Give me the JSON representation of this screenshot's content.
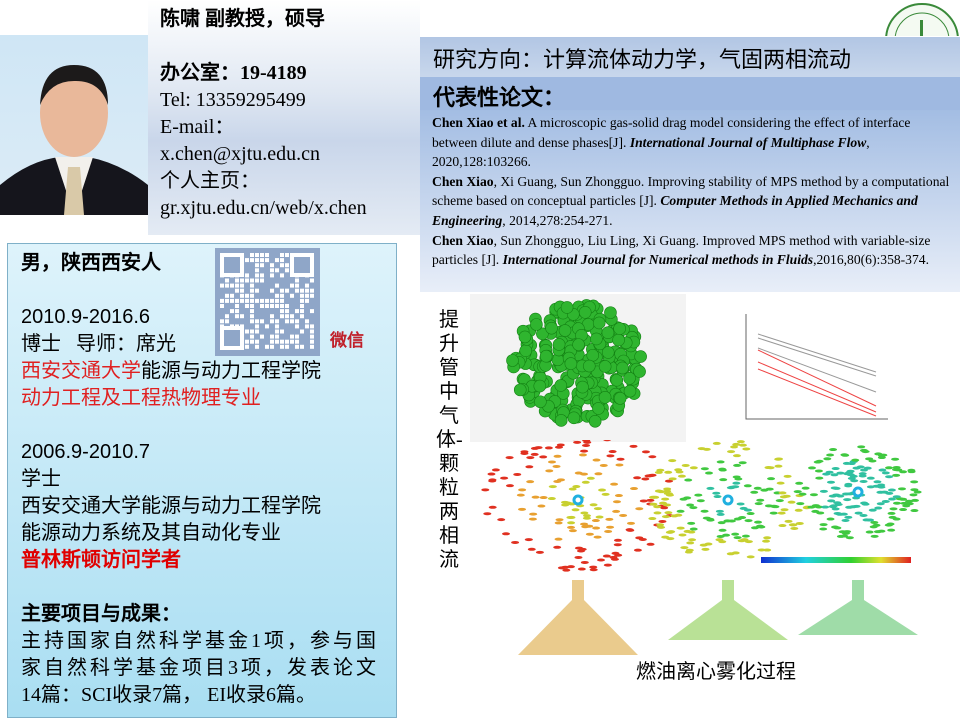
{
  "profile": {
    "name_title": "陈啸  副教授，硕导",
    "office": "办公室：19-4189",
    "tel": "Tel: 13359295499",
    "email_label": "E-mail：",
    "email": "x.chen@xjtu.edu.cn",
    "homepage_label": "个人主页：",
    "homepage": "gr.xjtu.edu.cn/web/x.chen"
  },
  "bio": {
    "origin": "男，陕西西安人",
    "phd_period": "2010.9-2016.6",
    "phd_degree": "博士   导师：席光",
    "phd_school_red": "西安交通大学",
    "phd_school_rest": "能源与动力工程学院",
    "phd_major": "动力工程及工程热物理专业",
    "bs_period": "2006.9-2010.7",
    "bs_degree": "学士",
    "bs_school": "西安交通大学能源与动力工程学院",
    "bs_major": "能源动力系统及其自动化专业",
    "visiting": "普林斯顿访问学者",
    "projects_title": "主要项目与成果：",
    "projects_lines": [
      "主持国家自然科学基金1项，参与国",
      "家自然科学基金项目3项，发表论文",
      "14篇：SCI收录7篇， EI收录6篇。"
    ],
    "wechat_label": "微信"
  },
  "research": {
    "direction": "研究方向：计算流体动力学，气固两相流动",
    "papers_title": "代表性论文："
  },
  "papers": [
    {
      "authors": "Chen Xiao et al.",
      "title": " A microscopic gas-solid drag model considering the effect of interface between dilute and dense phases[J]. ",
      "journal": "International Journal of Multiphase Flow",
      "rest": ", 2020,128:103266."
    },
    {
      "authors": "Chen Xiao",
      "title": ", Xi Guang, Sun Zhongguo. Improving stability of MPS method by a computational scheme based on conceptual particles [J]. ",
      "journal": "Computer Methods in Applied Mechanics and Engineering",
      "rest": ", 2014,278:254-271."
    },
    {
      "authors": "Chen Xiao",
      "title": ", Sun Zhongguo, Liu Ling, Xi Guang. Improved MPS method with variable-size particles [J]. ",
      "journal": "International Journal for Numerical methods in Fluids",
      "rest": ",2016,80(6):358-374."
    }
  ],
  "figures": {
    "vertical_caption": "提升管中气体-颗粒两相流",
    "spray_caption": "燃油离心雾化过程"
  },
  "colors": {
    "accent_red": "#e02020",
    "header_blue": "#9fb9e1",
    "particle_green": "#2fb52f"
  }
}
